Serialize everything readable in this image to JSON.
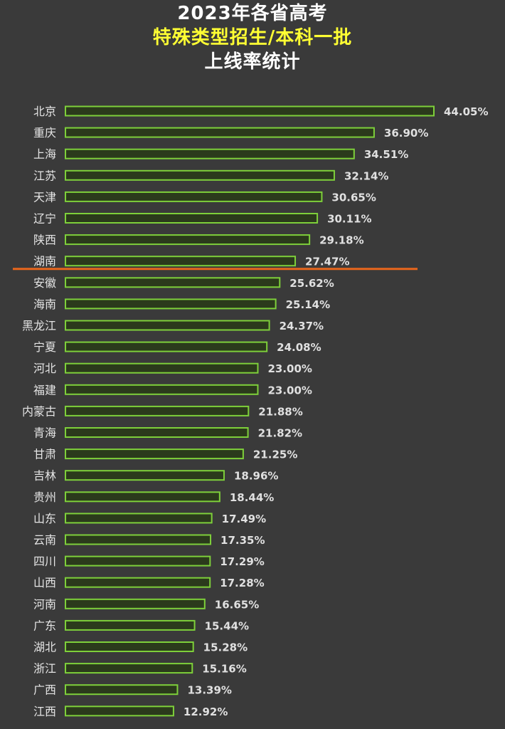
{
  "title": {
    "line1": "2023年各省高考",
    "line2": "特殊类型招生/本科一批",
    "line3": "上线率统计"
  },
  "colors": {
    "background": "#3a3a3a",
    "title_main": "#ffffff",
    "title_highlight": "#ffff33",
    "bar_fill": "#2b3a1c",
    "bar_border": "#7ed03a",
    "reference_line": "#e8661c"
  },
  "chart_data": {
    "type": "bar",
    "orientation": "horizontal",
    "title": "2023年各省高考 特殊类型招生/本科一批 上线率统计",
    "categories": [
      "北京",
      "重庆",
      "上海",
      "江苏",
      "天津",
      "辽宁",
      "陕西",
      "湖南",
      "安徽",
      "海南",
      "黑龙江",
      "宁夏",
      "河北",
      "福建",
      "内蒙古",
      "青海",
      "甘肃",
      "吉林",
      "贵州",
      "山东",
      "云南",
      "四川",
      "山西",
      "河南",
      "广东",
      "湖北",
      "浙江",
      "广西",
      "江西"
    ],
    "values": [
      44.05,
      36.9,
      34.51,
      32.14,
      30.65,
      30.11,
      29.18,
      27.47,
      25.62,
      25.14,
      24.37,
      24.08,
      23.0,
      23.0,
      21.88,
      21.82,
      21.25,
      18.96,
      18.44,
      17.49,
      17.35,
      17.29,
      17.28,
      16.65,
      15.44,
      15.28,
      15.16,
      13.39,
      12.92
    ],
    "value_labels": [
      "44.05%",
      "36.90%",
      "34.51%",
      "32.14%",
      "30.65%",
      "30.11%",
      "29.18%",
      "27.47%",
      "25.62%",
      "25.14%",
      "24.37%",
      "24.08%",
      "23.00%",
      "23.00%",
      "21.88%",
      "21.82%",
      "21.25%",
      "18.96%",
      "18.44%",
      "17.49%",
      "17.35%",
      "17.29%",
      "17.28%",
      "16.65%",
      "15.44%",
      "15.28%",
      "15.16%",
      "13.39%",
      "12.92%"
    ],
    "xlim": [
      0,
      44.05
    ],
    "reference_line_after_category": "湖南",
    "grid": false,
    "legend": "none"
  }
}
